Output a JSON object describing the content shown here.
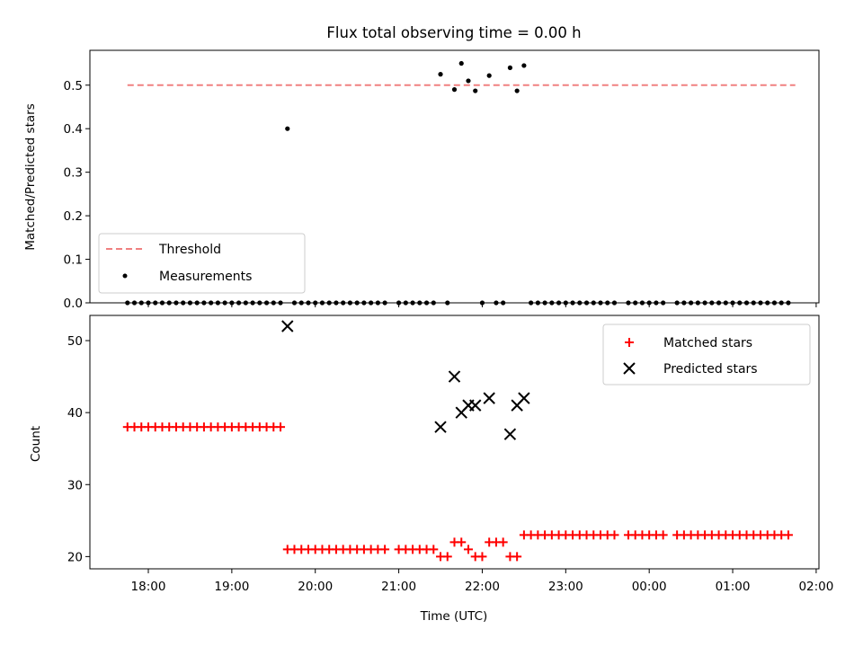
{
  "chart_data": [
    {
      "type": "scatter",
      "title": "Flux total observing time = 0.00 h",
      "ylabel": "Matched/Predicted stars",
      "xlabel": "",
      "ylim": [
        0,
        0.58
      ],
      "y_ticks": [
        "0.0",
        "0.1",
        "0.2",
        "0.3",
        "0.4",
        "0.5"
      ],
      "legend_position": "lower-left",
      "threshold": {
        "name": "Threshold",
        "value": 0.5,
        "color": "#f08080",
        "x_start": "17:45",
        "x_end": "01:45"
      },
      "measurements": {
        "name": "Measurements",
        "color": "#000000",
        "points": [
          [
            "17:45",
            0
          ],
          [
            "17:50",
            0
          ],
          [
            "17:55",
            0
          ],
          [
            "18:00",
            0
          ],
          [
            "18:05",
            0
          ],
          [
            "18:10",
            0
          ],
          [
            "18:15",
            0
          ],
          [
            "18:20",
            0
          ],
          [
            "18:25",
            0
          ],
          [
            "18:30",
            0
          ],
          [
            "18:35",
            0
          ],
          [
            "18:40",
            0
          ],
          [
            "18:45",
            0
          ],
          [
            "18:50",
            0
          ],
          [
            "18:55",
            0
          ],
          [
            "19:00",
            0
          ],
          [
            "19:05",
            0
          ],
          [
            "19:10",
            0
          ],
          [
            "19:15",
            0
          ],
          [
            "19:20",
            0
          ],
          [
            "19:25",
            0
          ],
          [
            "19:30",
            0
          ],
          [
            "19:35",
            0
          ],
          [
            "19:40",
            0.4
          ],
          [
            "19:45",
            0
          ],
          [
            "19:50",
            0
          ],
          [
            "19:55",
            0
          ],
          [
            "20:00",
            0
          ],
          [
            "20:05",
            0
          ],
          [
            "20:10",
            0
          ],
          [
            "20:15",
            0
          ],
          [
            "20:20",
            0
          ],
          [
            "20:25",
            0
          ],
          [
            "20:30",
            0
          ],
          [
            "20:35",
            0
          ],
          [
            "20:40",
            0
          ],
          [
            "20:45",
            0
          ],
          [
            "20:50",
            0
          ],
          [
            "21:00",
            0
          ],
          [
            "21:05",
            0
          ],
          [
            "21:10",
            0
          ],
          [
            "21:15",
            0
          ],
          [
            "21:20",
            0
          ],
          [
            "21:25",
            0
          ],
          [
            "21:30",
            0.525
          ],
          [
            "21:35",
            0
          ],
          [
            "21:40",
            0.49
          ],
          [
            "21:45",
            0.55
          ],
          [
            "21:50",
            0.51
          ],
          [
            "21:55",
            0.487
          ],
          [
            "22:00",
            0
          ],
          [
            "22:05",
            0.522
          ],
          [
            "22:10",
            0
          ],
          [
            "22:15",
            0
          ],
          [
            "22:20",
            0.54
          ],
          [
            "22:25",
            0.487
          ],
          [
            "22:30",
            0.545
          ],
          [
            "22:35",
            0
          ],
          [
            "22:40",
            0
          ],
          [
            "22:45",
            0
          ],
          [
            "22:50",
            0
          ],
          [
            "22:55",
            0
          ],
          [
            "23:00",
            0
          ],
          [
            "23:05",
            0
          ],
          [
            "23:10",
            0
          ],
          [
            "23:15",
            0
          ],
          [
            "23:20",
            0
          ],
          [
            "23:25",
            0
          ],
          [
            "23:30",
            0
          ],
          [
            "23:35",
            0
          ],
          [
            "23:45",
            0
          ],
          [
            "23:50",
            0
          ],
          [
            "23:55",
            0
          ],
          [
            "00:00",
            0
          ],
          [
            "00:05",
            0
          ],
          [
            "00:10",
            0
          ],
          [
            "00:20",
            0
          ],
          [
            "00:25",
            0
          ],
          [
            "00:30",
            0
          ],
          [
            "00:35",
            0
          ],
          [
            "00:40",
            0
          ],
          [
            "00:45",
            0
          ],
          [
            "00:50",
            0
          ],
          [
            "00:55",
            0
          ],
          [
            "01:00",
            0
          ],
          [
            "01:05",
            0
          ],
          [
            "01:10",
            0
          ],
          [
            "01:15",
            0
          ],
          [
            "01:20",
            0
          ],
          [
            "01:25",
            0
          ],
          [
            "01:30",
            0
          ],
          [
            "01:35",
            0
          ],
          [
            "01:40",
            0
          ]
        ]
      }
    },
    {
      "type": "scatter",
      "xlabel": "Time (UTC)",
      "ylabel": "Count",
      "ylim": [
        18.3,
        53.5
      ],
      "y_ticks": [
        "20",
        "30",
        "40",
        "50"
      ],
      "x_ticks": [
        "18:00",
        "19:00",
        "20:00",
        "21:00",
        "22:00",
        "23:00",
        "00:00",
        "01:00",
        "02:00"
      ],
      "x_range": [
        "17:18",
        "02:02"
      ],
      "legend_position": "top-right",
      "matched": {
        "name": "Matched stars",
        "color": "#ff0000",
        "points": [
          [
            "17:45",
            38
          ],
          [
            "17:50",
            38
          ],
          [
            "17:55",
            38
          ],
          [
            "18:00",
            38
          ],
          [
            "18:05",
            38
          ],
          [
            "18:10",
            38
          ],
          [
            "18:15",
            38
          ],
          [
            "18:20",
            38
          ],
          [
            "18:25",
            38
          ],
          [
            "18:30",
            38
          ],
          [
            "18:35",
            38
          ],
          [
            "18:40",
            38
          ],
          [
            "18:45",
            38
          ],
          [
            "18:50",
            38
          ],
          [
            "18:55",
            38
          ],
          [
            "19:00",
            38
          ],
          [
            "19:05",
            38
          ],
          [
            "19:10",
            38
          ],
          [
            "19:15",
            38
          ],
          [
            "19:20",
            38
          ],
          [
            "19:25",
            38
          ],
          [
            "19:30",
            38
          ],
          [
            "19:35",
            38
          ],
          [
            "19:40",
            21
          ],
          [
            "19:45",
            21
          ],
          [
            "19:50",
            21
          ],
          [
            "19:55",
            21
          ],
          [
            "20:00",
            21
          ],
          [
            "20:05",
            21
          ],
          [
            "20:10",
            21
          ],
          [
            "20:15",
            21
          ],
          [
            "20:20",
            21
          ],
          [
            "20:25",
            21
          ],
          [
            "20:30",
            21
          ],
          [
            "20:35",
            21
          ],
          [
            "20:40",
            21
          ],
          [
            "20:45",
            21
          ],
          [
            "20:50",
            21
          ],
          [
            "21:00",
            21
          ],
          [
            "21:05",
            21
          ],
          [
            "21:10",
            21
          ],
          [
            "21:15",
            21
          ],
          [
            "21:20",
            21
          ],
          [
            "21:25",
            21
          ],
          [
            "21:30",
            20
          ],
          [
            "21:35",
            20
          ],
          [
            "21:40",
            22
          ],
          [
            "21:45",
            22
          ],
          [
            "21:50",
            21
          ],
          [
            "21:55",
            20
          ],
          [
            "22:00",
            20
          ],
          [
            "22:05",
            22
          ],
          [
            "22:10",
            22
          ],
          [
            "22:15",
            22
          ],
          [
            "22:20",
            20
          ],
          [
            "22:25",
            20
          ],
          [
            "22:30",
            23
          ],
          [
            "22:35",
            23
          ],
          [
            "22:40",
            23
          ],
          [
            "22:45",
            23
          ],
          [
            "22:50",
            23
          ],
          [
            "22:55",
            23
          ],
          [
            "23:00",
            23
          ],
          [
            "23:05",
            23
          ],
          [
            "23:10",
            23
          ],
          [
            "23:15",
            23
          ],
          [
            "23:20",
            23
          ],
          [
            "23:25",
            23
          ],
          [
            "23:30",
            23
          ],
          [
            "23:35",
            23
          ],
          [
            "23:45",
            23
          ],
          [
            "23:50",
            23
          ],
          [
            "23:55",
            23
          ],
          [
            "00:00",
            23
          ],
          [
            "00:05",
            23
          ],
          [
            "00:10",
            23
          ],
          [
            "00:20",
            23
          ],
          [
            "00:25",
            23
          ],
          [
            "00:30",
            23
          ],
          [
            "00:35",
            23
          ],
          [
            "00:40",
            23
          ],
          [
            "00:45",
            23
          ],
          [
            "00:50",
            23
          ],
          [
            "00:55",
            23
          ],
          [
            "01:00",
            23
          ],
          [
            "01:05",
            23
          ],
          [
            "01:10",
            23
          ],
          [
            "01:15",
            23
          ],
          [
            "01:20",
            23
          ],
          [
            "01:25",
            23
          ],
          [
            "01:30",
            23
          ],
          [
            "01:35",
            23
          ],
          [
            "01:40",
            23
          ]
        ]
      },
      "predicted": {
        "name": "Predicted stars",
        "color": "#000000",
        "points": [
          [
            "19:40",
            52
          ],
          [
            "21:30",
            38
          ],
          [
            "21:40",
            45
          ],
          [
            "21:45",
            40
          ],
          [
            "21:50",
            41
          ],
          [
            "21:55",
            41
          ],
          [
            "22:05",
            42
          ],
          [
            "22:20",
            37
          ],
          [
            "22:25",
            41
          ],
          [
            "22:30",
            42
          ]
        ]
      }
    }
  ]
}
